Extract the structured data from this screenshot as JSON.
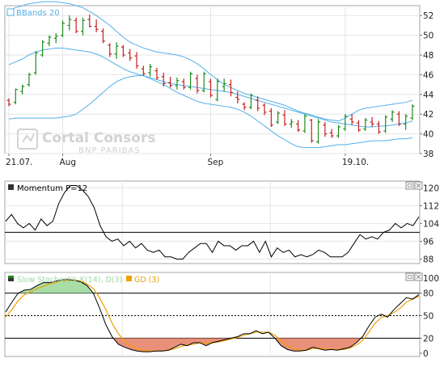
{
  "colors": {
    "border": "#a7a7a7",
    "grid": "#e6e6e6",
    "band": "#52b0e8",
    "up": "#1f8a1f",
    "down": "#c62020",
    "line": "#000000",
    "stochK": "#000000",
    "stochD": "#f0a000",
    "fillHigh": "#9fd99f",
    "fillLow": "#e8846b",
    "watermark": "#d2d2d2"
  },
  "watermark": {
    "brand": "Cortal Consors",
    "sub": "BNP PARIBAS",
    "icon": "cortal-logo-icon"
  },
  "panel_controls": {
    "detach_icon": "detach-icon",
    "close_icon": "close-icon"
  },
  "chart_data": [
    {
      "type": "candlestick",
      "title": "BBands 20",
      "x_ticks": [
        {
          "label": "21.07.",
          "index": 0
        },
        {
          "label": "Aug",
          "index": 8
        },
        {
          "label": "Sep",
          "index": 30
        },
        {
          "label": "19.10.",
          "index": 50
        }
      ],
      "ylim": [
        38,
        53
      ],
      "y_ticks": [
        38,
        40,
        42,
        44,
        46,
        48,
        50,
        52
      ],
      "grid": true,
      "ohlc": [
        [
          43.4,
          43.6,
          42.8,
          43.0
        ],
        [
          43.2,
          44.6,
          43.0,
          44.5
        ],
        [
          44.3,
          45.0,
          44.0,
          44.8
        ],
        [
          45.0,
          46.2,
          44.8,
          46.0
        ],
        [
          46.2,
          48.4,
          46.0,
          48.2
        ],
        [
          48.0,
          49.5,
          47.8,
          49.3
        ],
        [
          49.2,
          50.0,
          48.9,
          49.8
        ],
        [
          49.7,
          50.2,
          49.2,
          49.9
        ],
        [
          50.0,
          51.5,
          49.8,
          51.2
        ],
        [
          51.0,
          52.0,
          50.5,
          51.6
        ],
        [
          51.5,
          51.8,
          50.2,
          50.4
        ],
        [
          50.4,
          51.8,
          50.0,
          51.5
        ],
        [
          51.6,
          52.1,
          50.8,
          50.9
        ],
        [
          50.9,
          51.6,
          50.3,
          50.6
        ],
        [
          50.4,
          50.7,
          49.2,
          49.4
        ],
        [
          49.0,
          49.2,
          47.8,
          48.1
        ],
        [
          48.1,
          49.3,
          47.6,
          48.9
        ],
        [
          48.8,
          49.0,
          47.8,
          48.0
        ],
        [
          48.2,
          48.6,
          47.4,
          47.7
        ],
        [
          47.9,
          48.3,
          46.6,
          46.9
        ],
        [
          46.6,
          46.9,
          45.9,
          46.1
        ],
        [
          46.2,
          47.1,
          45.8,
          46.8
        ],
        [
          46.4,
          46.7,
          45.5,
          45.7
        ],
        [
          45.8,
          46.2,
          44.8,
          45.1
        ],
        [
          45.2,
          45.8,
          44.7,
          44.9
        ],
        [
          44.9,
          45.7,
          44.5,
          45.4
        ],
        [
          45.3,
          45.6,
          44.5,
          44.7
        ],
        [
          44.7,
          46.3,
          44.5,
          46.1
        ],
        [
          45.6,
          46.0,
          44.1,
          44.4
        ],
        [
          44.4,
          46.3,
          44.2,
          46.1
        ],
        [
          45.3,
          45.6,
          43.7,
          43.9
        ],
        [
          43.5,
          45.6,
          43.3,
          45.3
        ],
        [
          44.8,
          45.6,
          44.3,
          45.1
        ],
        [
          45.0,
          45.5,
          43.8,
          44.2
        ],
        [
          43.7,
          44.3,
          43.1,
          43.5
        ],
        [
          43.0,
          43.2,
          42.4,
          42.7
        ],
        [
          42.7,
          44.1,
          42.5,
          43.9
        ],
        [
          43.4,
          43.8,
          42.3,
          42.6
        ],
        [
          42.9,
          43.1,
          41.9,
          42.2
        ],
        [
          42.3,
          42.6,
          40.7,
          40.9
        ],
        [
          41.2,
          42.3,
          41.0,
          42.1
        ],
        [
          41.9,
          42.4,
          40.8,
          41.0
        ],
        [
          41.0,
          41.5,
          40.6,
          41.2
        ],
        [
          41.0,
          41.4,
          40.2,
          40.4
        ],
        [
          40.3,
          42.0,
          40.1,
          41.8
        ],
        [
          41.4,
          41.5,
          39.1,
          39.3
        ],
        [
          39.2,
          41.5,
          39.0,
          41.2
        ],
        [
          40.9,
          41.2,
          39.7,
          40.0
        ],
        [
          40.1,
          40.5,
          39.6,
          39.8
        ],
        [
          39.8,
          40.9,
          39.6,
          40.7
        ],
        [
          40.5,
          42.0,
          40.3,
          41.8
        ],
        [
          41.5,
          42.0,
          40.9,
          41.2
        ],
        [
          41.1,
          41.4,
          40.2,
          40.4
        ],
        [
          40.5,
          41.6,
          40.3,
          41.4
        ],
        [
          41.2,
          41.7,
          40.7,
          41.0
        ],
        [
          41.0,
          41.3,
          40.0,
          40.2
        ],
        [
          40.3,
          41.9,
          40.1,
          41.7
        ],
        [
          41.5,
          42.4,
          41.2,
          42.2
        ],
        [
          42.0,
          42.3,
          40.8,
          41.0
        ],
        [
          41.0,
          42.0,
          40.4,
          41.8
        ],
        [
          41.6,
          43.0,
          41.4,
          42.8
        ]
      ],
      "bands": {
        "upper": [
          52.5,
          52.8,
          53.0,
          53.2,
          53.3,
          53.4,
          53.4,
          53.4,
          53.3,
          53.2,
          53.0,
          52.8,
          52.4,
          52.0,
          51.5,
          51.0,
          50.4,
          49.8,
          49.3,
          49.0,
          48.7,
          48.5,
          48.3,
          48.2,
          48.1,
          48.0,
          47.8,
          47.5,
          47.1,
          46.6,
          46.0,
          45.5,
          45.0,
          44.7,
          44.4,
          44.1,
          43.9,
          43.7,
          43.5,
          43.3,
          43.1,
          42.9,
          42.6,
          42.3,
          42.1,
          41.9,
          41.7,
          41.5,
          41.4,
          41.3,
          41.6,
          42.0,
          42.4,
          42.6,
          42.7,
          42.8,
          42.9,
          43.0,
          43.1,
          43.2,
          43.4
        ],
        "middle": [
          47.0,
          47.3,
          47.6,
          48.0,
          48.3,
          48.5,
          48.6,
          48.7,
          48.7,
          48.6,
          48.5,
          48.4,
          48.3,
          48.1,
          47.8,
          47.4,
          47.0,
          46.6,
          46.3,
          46.1,
          45.9,
          45.7,
          45.5,
          45.3,
          45.1,
          45.0,
          44.9,
          44.8,
          44.7,
          44.6,
          44.5,
          44.4,
          44.3,
          44.2,
          44.0,
          43.8,
          43.6,
          43.4,
          43.2,
          43.0,
          42.8,
          42.6,
          42.4,
          42.2,
          42.0,
          41.8,
          41.6,
          41.4,
          41.2,
          41.1,
          41.0,
          40.9,
          40.8,
          40.7,
          40.7,
          40.8,
          40.8,
          40.9,
          41.0,
          41.1,
          41.3
        ],
        "lower": [
          41.5,
          41.6,
          41.6,
          41.6,
          41.6,
          41.6,
          41.6,
          41.6,
          41.7,
          41.8,
          42.0,
          42.5,
          43.0,
          43.6,
          44.2,
          44.8,
          45.3,
          45.6,
          45.8,
          45.9,
          45.9,
          45.6,
          45.3,
          45.0,
          44.6,
          44.2,
          43.9,
          43.6,
          43.3,
          43.1,
          43.0,
          42.9,
          42.8,
          42.7,
          42.5,
          42.2,
          41.8,
          41.3,
          40.8,
          40.3,
          39.8,
          39.4,
          39.0,
          38.7,
          38.6,
          38.6,
          38.6,
          38.7,
          38.8,
          38.9,
          38.9,
          39.0,
          39.1,
          39.2,
          39.3,
          39.3,
          39.3,
          39.4,
          39.5,
          39.5,
          39.6
        ]
      }
    },
    {
      "type": "line",
      "title": "Momentum P=12",
      "ylim": [
        86,
        123
      ],
      "y_ticks": [
        88,
        96,
        104,
        112,
        120
      ],
      "reference": 100,
      "values": [
        105,
        108,
        104,
        102,
        104,
        101,
        106,
        103,
        105,
        113,
        118,
        121,
        121,
        119,
        116,
        111,
        103,
        98,
        96,
        97,
        94,
        96,
        93,
        95,
        92,
        91,
        92,
        89,
        89,
        88,
        88,
        91,
        93,
        95,
        95,
        91,
        96,
        94,
        94,
        92,
        94,
        94,
        96,
        91,
        96,
        89,
        93,
        91,
        92,
        89,
        90,
        89,
        90,
        92,
        91,
        89,
        89,
        89,
        91,
        95,
        99,
        97,
        98,
        97,
        100,
        101,
        104,
        102,
        104,
        103,
        107
      ]
    },
    {
      "type": "line",
      "title": "Slow Stochastik K(14), D(3)",
      "legend": [
        {
          "name": "Slow Stochastik K(14), D(3)",
          "color": "#000000"
        },
        {
          "name": "GD (3)",
          "color": "#f0a000"
        }
      ],
      "ylim": [
        0,
        100
      ],
      "y_ticks": [
        0,
        20,
        50,
        80,
        100
      ],
      "levels": [
        20,
        50,
        80
      ],
      "k": [
        55,
        68,
        80,
        84,
        85,
        90,
        94,
        94,
        96,
        98,
        98,
        97,
        95,
        90,
        80,
        60,
        38,
        22,
        12,
        8,
        5,
        3,
        2,
        2,
        3,
        3,
        4,
        8,
        12,
        10,
        14,
        14,
        10,
        14,
        16,
        18,
        20,
        22,
        26,
        26,
        30,
        26,
        28,
        20,
        10,
        5,
        3,
        3,
        4,
        8,
        6,
        4,
        5,
        4,
        6,
        8,
        14,
        22,
        36,
        48,
        52,
        48,
        58,
        66,
        74,
        72,
        78
      ],
      "d": [
        48,
        58,
        70,
        78,
        82,
        86,
        89,
        92,
        94,
        96,
        97,
        97,
        96,
        92,
        86,
        74,
        58,
        40,
        26,
        16,
        10,
        6,
        4,
        3,
        3,
        3,
        4,
        6,
        9,
        11,
        12,
        14,
        13,
        14,
        15,
        17,
        19,
        21,
        24,
        26,
        28,
        28,
        28,
        24,
        17,
        10,
        6,
        4,
        4,
        6,
        7,
        6,
        5,
        5,
        5,
        7,
        11,
        17,
        28,
        40,
        48,
        50,
        54,
        60,
        68,
        72,
        76
      ]
    }
  ]
}
